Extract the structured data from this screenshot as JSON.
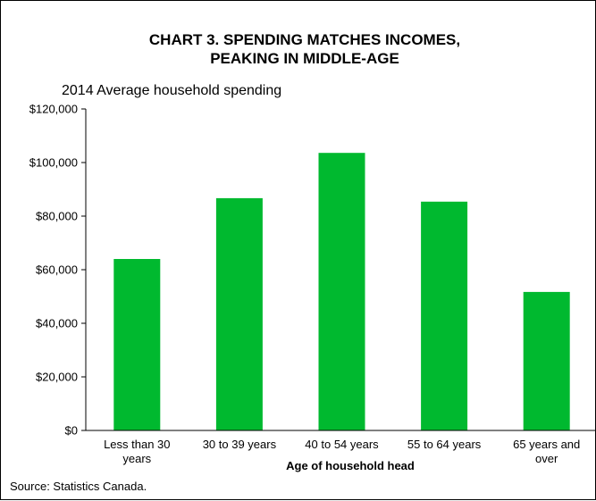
{
  "chart_data": {
    "type": "bar",
    "title_lines": [
      "CHART 3. SPENDING MATCHES INCOMES,",
      "PEAKING IN MIDDLE-AGE"
    ],
    "subtitle": "2014 Average household spending",
    "xlabel": "Age of household head",
    "ylabel": "",
    "categories": [
      [
        "Less than 30",
        "years"
      ],
      [
        "30 to 39 years"
      ],
      [
        "40 to 54 years"
      ],
      [
        "55 to 64 years"
      ],
      [
        "65 years and",
        "over"
      ]
    ],
    "values": [
      64000,
      86700,
      103600,
      85400,
      51700
    ],
    "ylim": [
      0,
      120000
    ],
    "y_ticks": [
      0,
      20000,
      40000,
      60000,
      80000,
      100000,
      120000
    ],
    "y_tick_labels": [
      "$0",
      "$20,000",
      "$40,000",
      "$60,000",
      "$80,000",
      "$100,000",
      "$120,000"
    ],
    "bar_color": "#00b92f",
    "grid": false,
    "legend": "none",
    "source": "Source: Statistics Canada."
  }
}
